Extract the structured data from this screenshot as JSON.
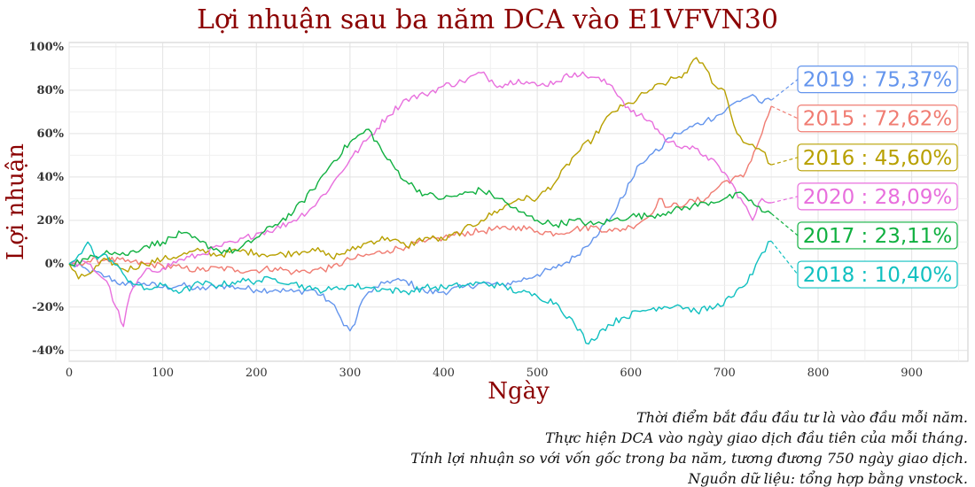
{
  "chart_data": {
    "type": "line",
    "title": "Lợi nhuận sau ba năm DCA vào E1VFVN30",
    "xlabel": "Ngày",
    "ylabel": "Lợi nhuận",
    "xlim": [
      0,
      960
    ],
    "ylim": [
      -45,
      102
    ],
    "xticks": [
      0,
      100,
      200,
      300,
      400,
      500,
      600,
      700,
      800,
      900
    ],
    "yticks": [
      -40,
      -20,
      0,
      20,
      40,
      60,
      80,
      100
    ],
    "ytick_labels": [
      "-40%",
      "-20%",
      "0%",
      "20%",
      "40%",
      "60%",
      "80%",
      "100%"
    ],
    "grid": true,
    "series": [
      {
        "name": "2019",
        "label": "2019 : 75,37%",
        "final": 75.37,
        "color": "#6495ed",
        "points": [
          [
            0,
            0
          ],
          [
            20,
            -3
          ],
          [
            40,
            -6
          ],
          [
            60,
            -10
          ],
          [
            80,
            -9
          ],
          [
            100,
            -11
          ],
          [
            120,
            -10
          ],
          [
            140,
            -12
          ],
          [
            160,
            -10
          ],
          [
            180,
            -11
          ],
          [
            200,
            -12
          ],
          [
            220,
            -12
          ],
          [
            240,
            -13
          ],
          [
            260,
            -12
          ],
          [
            280,
            -18
          ],
          [
            290,
            -25
          ],
          [
            300,
            -31
          ],
          [
            305,
            -28
          ],
          [
            310,
            -20
          ],
          [
            320,
            -13
          ],
          [
            330,
            -11
          ],
          [
            340,
            -8
          ],
          [
            360,
            -8
          ],
          [
            380,
            -13
          ],
          [
            400,
            -13
          ],
          [
            420,
            -11
          ],
          [
            440,
            -9
          ],
          [
            460,
            -10
          ],
          [
            480,
            -8
          ],
          [
            500,
            -5
          ],
          [
            520,
            -2
          ],
          [
            540,
            3
          ],
          [
            560,
            12
          ],
          [
            580,
            22
          ],
          [
            600,
            38
          ],
          [
            610,
            46
          ],
          [
            620,
            50
          ],
          [
            630,
            52
          ],
          [
            640,
            58
          ],
          [
            650,
            60
          ],
          [
            660,
            62
          ],
          [
            680,
            66
          ],
          [
            700,
            70
          ],
          [
            710,
            74
          ],
          [
            720,
            76
          ],
          [
            730,
            78
          ],
          [
            740,
            74
          ],
          [
            750,
            75.37
          ]
        ]
      },
      {
        "name": "2015",
        "label": "2015 : 72,62%",
        "final": 72.62,
        "color": "#f07c72",
        "points": [
          [
            0,
            0
          ],
          [
            20,
            1
          ],
          [
            40,
            2
          ],
          [
            60,
            1
          ],
          [
            80,
            0
          ],
          [
            100,
            -1
          ],
          [
            120,
            -2
          ],
          [
            140,
            -3
          ],
          [
            160,
            -2
          ],
          [
            180,
            -3
          ],
          [
            200,
            -3
          ],
          [
            220,
            -2
          ],
          [
            240,
            -4
          ],
          [
            260,
            -3
          ],
          [
            280,
            -2
          ],
          [
            300,
            2
          ],
          [
            320,
            4
          ],
          [
            340,
            6
          ],
          [
            360,
            8
          ],
          [
            380,
            10
          ],
          [
            400,
            12
          ],
          [
            420,
            14
          ],
          [
            440,
            15
          ],
          [
            460,
            16
          ],
          [
            480,
            17
          ],
          [
            500,
            15
          ],
          [
            520,
            14
          ],
          [
            540,
            16
          ],
          [
            560,
            17
          ],
          [
            580,
            15
          ],
          [
            600,
            17
          ],
          [
            620,
            22
          ],
          [
            630,
            30
          ],
          [
            640,
            26
          ],
          [
            660,
            28
          ],
          [
            680,
            30
          ],
          [
            700,
            38
          ],
          [
            720,
            40
          ],
          [
            740,
            60
          ],
          [
            750,
            72.62
          ]
        ]
      },
      {
        "name": "2016",
        "label": "2016 : 45,60%",
        "final": 45.6,
        "color": "#b8a000",
        "points": [
          [
            0,
            0
          ],
          [
            10,
            -7
          ],
          [
            20,
            -5
          ],
          [
            40,
            2
          ],
          [
            60,
            -3
          ],
          [
            80,
            0
          ],
          [
            100,
            2
          ],
          [
            120,
            4
          ],
          [
            140,
            6
          ],
          [
            160,
            4
          ],
          [
            180,
            6
          ],
          [
            200,
            5
          ],
          [
            220,
            4
          ],
          [
            240,
            5
          ],
          [
            260,
            7
          ],
          [
            280,
            3
          ],
          [
            300,
            6
          ],
          [
            320,
            10
          ],
          [
            340,
            12
          ],
          [
            360,
            8
          ],
          [
            380,
            12
          ],
          [
            400,
            11
          ],
          [
            420,
            15
          ],
          [
            440,
            20
          ],
          [
            460,
            25
          ],
          [
            480,
            30
          ],
          [
            500,
            30
          ],
          [
            520,
            38
          ],
          [
            540,
            50
          ],
          [
            560,
            58
          ],
          [
            580,
            70
          ],
          [
            600,
            74
          ],
          [
            620,
            80
          ],
          [
            640,
            84
          ],
          [
            660,
            88
          ],
          [
            670,
            95
          ],
          [
            680,
            90
          ],
          [
            690,
            82
          ],
          [
            700,
            80
          ],
          [
            710,
            64
          ],
          [
            720,
            56
          ],
          [
            730,
            55
          ],
          [
            740,
            52
          ],
          [
            750,
            45.6
          ]
        ]
      },
      {
        "name": "2020",
        "label": "2020 : 28,09%",
        "final": 28.09,
        "color": "#e86fdd",
        "points": [
          [
            0,
            0
          ],
          [
            20,
            0
          ],
          [
            40,
            -8
          ],
          [
            50,
            -20
          ],
          [
            58,
            -29
          ],
          [
            65,
            -14
          ],
          [
            80,
            -4
          ],
          [
            100,
            -2
          ],
          [
            120,
            2
          ],
          [
            140,
            4
          ],
          [
            160,
            8
          ],
          [
            180,
            10
          ],
          [
            200,
            14
          ],
          [
            220,
            16
          ],
          [
            240,
            20
          ],
          [
            260,
            26
          ],
          [
            280,
            36
          ],
          [
            300,
            48
          ],
          [
            320,
            58
          ],
          [
            340,
            68
          ],
          [
            360,
            76
          ],
          [
            380,
            78
          ],
          [
            400,
            82
          ],
          [
            420,
            84
          ],
          [
            440,
            88
          ],
          [
            460,
            82
          ],
          [
            480,
            85
          ],
          [
            500,
            82
          ],
          [
            520,
            84
          ],
          [
            540,
            88
          ],
          [
            560,
            86
          ],
          [
            580,
            82
          ],
          [
            600,
            70
          ],
          [
            620,
            66
          ],
          [
            640,
            56
          ],
          [
            660,
            54
          ],
          [
            680,
            50
          ],
          [
            700,
            42
          ],
          [
            720,
            28
          ],
          [
            730,
            20
          ],
          [
            740,
            30
          ],
          [
            750,
            28.09
          ]
        ]
      },
      {
        "name": "2017",
        "label": "2017 : 23,11%",
        "final": 23.11,
        "color": "#10b040",
        "points": [
          [
            0,
            0
          ],
          [
            20,
            2
          ],
          [
            40,
            6
          ],
          [
            60,
            4
          ],
          [
            80,
            8
          ],
          [
            100,
            10
          ],
          [
            120,
            14
          ],
          [
            140,
            10
          ],
          [
            160,
            6
          ],
          [
            180,
            6
          ],
          [
            200,
            12
          ],
          [
            220,
            18
          ],
          [
            240,
            24
          ],
          [
            260,
            34
          ],
          [
            280,
            46
          ],
          [
            300,
            56
          ],
          [
            320,
            62
          ],
          [
            340,
            48
          ],
          [
            360,
            38
          ],
          [
            380,
            32
          ],
          [
            400,
            30
          ],
          [
            420,
            32
          ],
          [
            440,
            34
          ],
          [
            460,
            30
          ],
          [
            480,
            24
          ],
          [
            500,
            20
          ],
          [
            520,
            18
          ],
          [
            540,
            20
          ],
          [
            560,
            18
          ],
          [
            580,
            20
          ],
          [
            600,
            22
          ],
          [
            620,
            22
          ],
          [
            640,
            24
          ],
          [
            660,
            26
          ],
          [
            680,
            28
          ],
          [
            700,
            30
          ],
          [
            720,
            32
          ],
          [
            740,
            24
          ],
          [
            750,
            23.11
          ]
        ]
      },
      {
        "name": "2018",
        "label": "2018 : 10,40%",
        "final": 10.4,
        "color": "#10c0c0",
        "points": [
          [
            0,
            0
          ],
          [
            10,
            4
          ],
          [
            20,
            10
          ],
          [
            30,
            2
          ],
          [
            40,
            4
          ],
          [
            60,
            -6
          ],
          [
            80,
            -12
          ],
          [
            100,
            -10
          ],
          [
            120,
            -13
          ],
          [
            140,
            -9
          ],
          [
            160,
            -10
          ],
          [
            180,
            -8
          ],
          [
            200,
            -8
          ],
          [
            220,
            -7
          ],
          [
            240,
            -9
          ],
          [
            260,
            -12
          ],
          [
            280,
            -12
          ],
          [
            300,
            -10
          ],
          [
            320,
            -11
          ],
          [
            340,
            -12
          ],
          [
            360,
            -13
          ],
          [
            380,
            -11
          ],
          [
            400,
            -11
          ],
          [
            420,
            -10
          ],
          [
            440,
            -9
          ],
          [
            460,
            -10
          ],
          [
            480,
            -13
          ],
          [
            500,
            -15
          ],
          [
            520,
            -18
          ],
          [
            540,
            -28
          ],
          [
            555,
            -37
          ],
          [
            570,
            -30
          ],
          [
            590,
            -25
          ],
          [
            610,
            -22
          ],
          [
            630,
            -20
          ],
          [
            650,
            -19
          ],
          [
            670,
            -22
          ],
          [
            690,
            -20
          ],
          [
            710,
            -15
          ],
          [
            730,
            -5
          ],
          [
            740,
            5
          ],
          [
            750,
            10.4
          ]
        ]
      }
    ],
    "label_y_order": [
      85,
      67,
      49,
      31,
      13,
      -5
    ]
  },
  "notes": [
    "Thời điểm bắt đầu đầu tư là vào đầu mỗi năm.",
    "Thực hiện DCA vào ngày giao dịch đầu tiên của mỗi tháng.",
    "Tính lợi nhuận so với vốn gốc trong ba năm, tương đương 750 ngày giao dịch.",
    "Nguồn dữ liệu: tổng hợp bằng vnstock."
  ]
}
